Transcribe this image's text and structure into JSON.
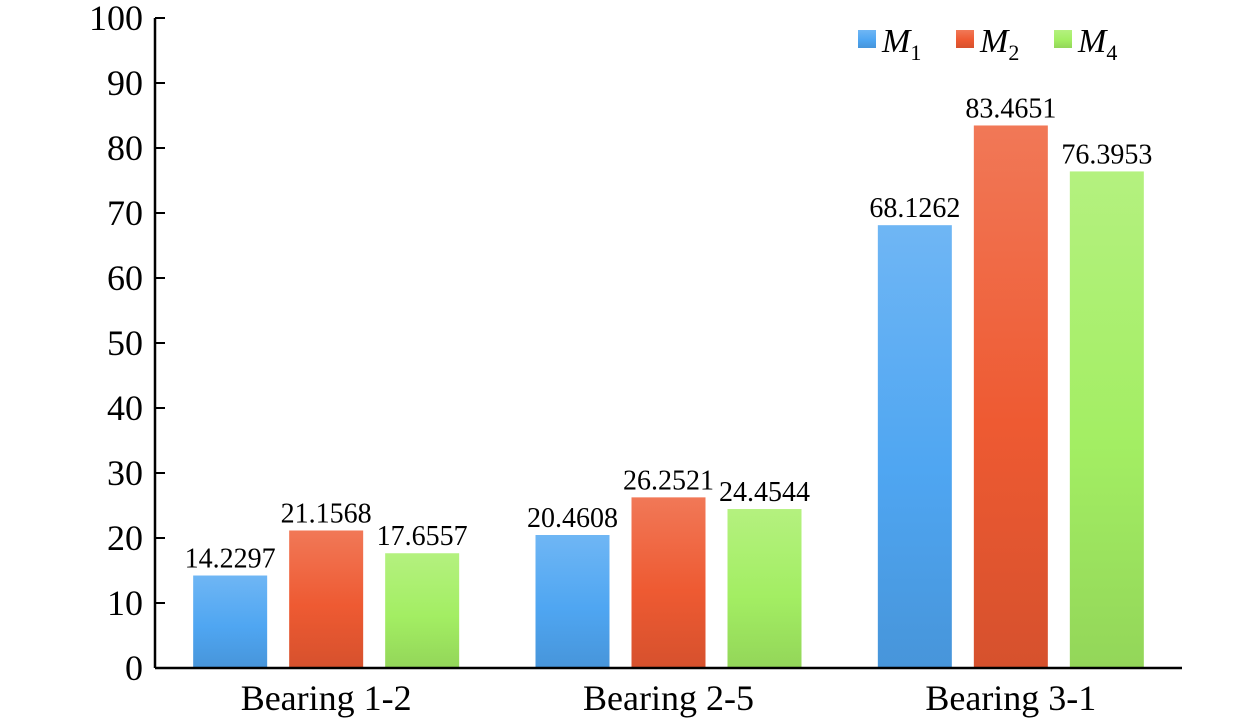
{
  "chart_data": {
    "type": "bar",
    "categories": [
      "Bearing 1-2",
      "Bearing 2-5",
      "Bearing 3-1"
    ],
    "series": [
      {
        "name": "M1",
        "legend_main": "M",
        "legend_sub": "1",
        "color": "#4FA6F2",
        "values": [
          14.2297,
          20.4608,
          68.1262
        ]
      },
      {
        "name": "M2",
        "legend_main": "M",
        "legend_sub": "2",
        "color": "#EE5A32",
        "values": [
          21.1568,
          26.2521,
          83.4651
        ]
      },
      {
        "name": "M4",
        "legend_main": "M",
        "legend_sub": "4",
        "color": "#A3EE63",
        "values": [
          17.6557,
          24.4544,
          76.3953
        ]
      }
    ],
    "data_labels": [
      [
        "14.2297",
        "20.4608",
        "68.1262"
      ],
      [
        "21.1568",
        "26.2521",
        "83.4651"
      ],
      [
        "17.6557",
        "24.4544",
        "76.3953"
      ]
    ],
    "ylim": [
      0,
      100
    ],
    "yticks": [
      0,
      10,
      20,
      30,
      40,
      50,
      60,
      70,
      80,
      90,
      100
    ],
    "title": "",
    "xlabel": "",
    "ylabel": "",
    "grid": false,
    "legend_position": "top-right"
  }
}
